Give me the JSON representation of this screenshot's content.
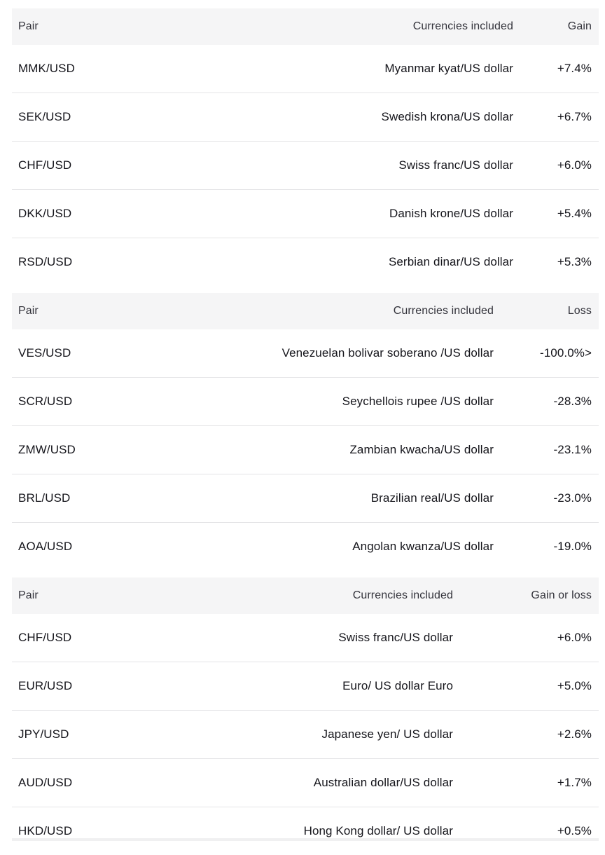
{
  "colors": {
    "header_bg": "#f5f5f6",
    "row_divider": "#e4e4e6",
    "header_text": "#33333b",
    "cell_text": "#15151b"
  },
  "chart_data": [
    {
      "type": "table",
      "name": "top-gainers",
      "columns": [
        "Pair",
        "Currencies included",
        "Gain"
      ],
      "rows": [
        [
          "MMK/USD",
          "Myanmar kyat/US dollar",
          "+7.4%"
        ],
        [
          "SEK/USD",
          "Swedish krona/US dollar",
          "+6.7%"
        ],
        [
          "CHF/USD",
          "Swiss franc/US dollar",
          "+6.0%"
        ],
        [
          "DKK/USD",
          "Danish krone/US dollar",
          "+5.4%"
        ],
        [
          "RSD/USD",
          "Serbian dinar/US dollar",
          "+5.3%"
        ]
      ]
    },
    {
      "type": "table",
      "name": "top-losers",
      "columns": [
        "Pair",
        "Currencies included",
        "Loss"
      ],
      "rows": [
        [
          "VES/USD",
          "Venezuelan bolivar soberano /US dollar",
          "-100.0%>"
        ],
        [
          "SCR/USD",
          "Seychellois rupee /US dollar",
          "-28.3%"
        ],
        [
          "ZMW/USD",
          "Zambian kwacha/US dollar",
          "-23.1%"
        ],
        [
          "BRL/USD",
          "Brazilian real/US dollar",
          "-23.0%"
        ],
        [
          "AOA/USD",
          "Angolan kwanza/US dollar",
          "-19.0%"
        ]
      ]
    },
    {
      "type": "table",
      "name": "major-pairs",
      "columns": [
        "Pair",
        "Currencies included",
        "Gain or loss"
      ],
      "rows": [
        [
          "CHF/USD",
          "Swiss franc/US dollar",
          "+6.0%"
        ],
        [
          "EUR/USD",
          "Euro/ US dollar Euro",
          "+5.0%"
        ],
        [
          "JPY/USD",
          "Japanese yen/ US dollar",
          "+2.6%"
        ],
        [
          "AUD/USD",
          "Australian dollar/US dollar",
          "+1.7%"
        ],
        [
          "HKD/USD",
          "Hong Kong dollar/ US dollar",
          "+0.5%"
        ]
      ]
    }
  ]
}
